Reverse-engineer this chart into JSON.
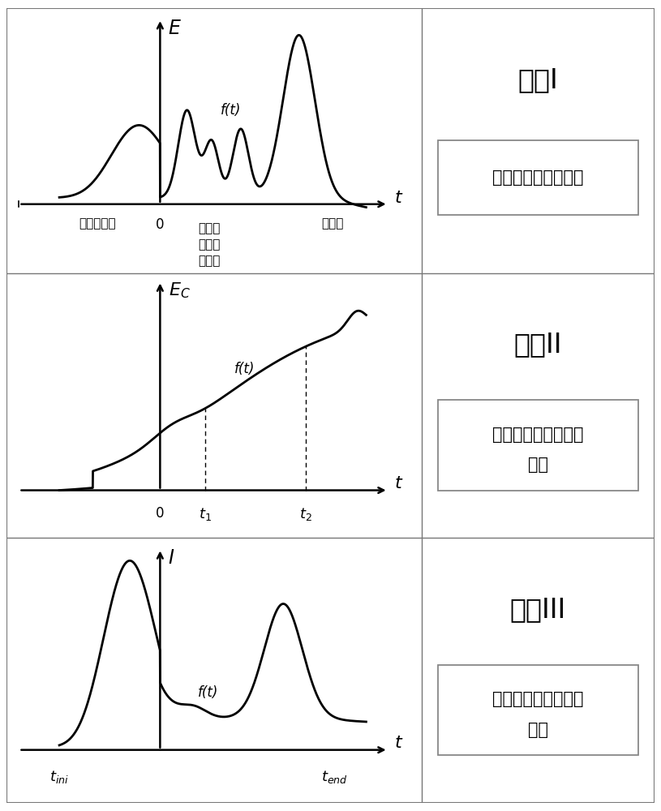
{
  "panel1": {
    "title": "曲线I",
    "box_text": "全寿命周期能耗曲线",
    "y_label": "E",
    "x_label": "t",
    "ft_label": "f(t)"
  },
  "panel2": {
    "title": "曲线II",
    "box_text_line1": "全寿命周期能耗累积",
    "box_text_line2": "曲线",
    "y_label": "E_C",
    "x_label": "t",
    "ft_label": "f(t)"
  },
  "panel3": {
    "title": "曲线III",
    "box_text_line1": "全寿命周期能耗强度",
    "box_text_line2": "曲线",
    "y_label": "I",
    "x_label": "t",
    "ft_label": "f(t)"
  },
  "bg_color": "#ffffff",
  "line_color": "#000000",
  "border_color": "#aaaaaa",
  "font_size_title": 22,
  "font_size_box": 15,
  "font_size_label": 15,
  "font_size_anno": 12
}
